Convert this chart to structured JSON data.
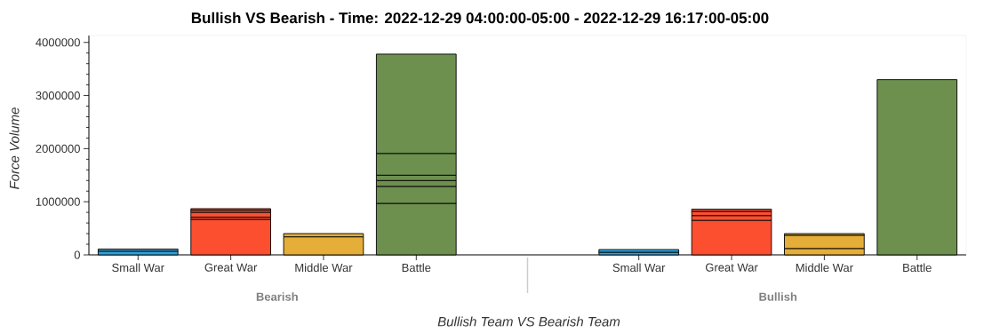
{
  "chart_data": {
    "type": "bar",
    "stacked": true,
    "title": "Bullish VS Bearish - Time: 2022-12-29 04:00:00-05:00 - 2022-12-29 16:17:00-05:00",
    "xlabel": "Bullish Team VS Bearish Team",
    "ylabel": "Force Volume",
    "categories": [
      "Small War",
      "Great War",
      "Middle War",
      "Battle",
      "Small War",
      "Great War",
      "Middle War",
      "Battle"
    ],
    "annotations": [
      "Bearish",
      "Bullish"
    ],
    "ylim": [
      0,
      4130000
    ],
    "yticks": [
      0,
      1000000,
      2000000,
      3000000,
      4000000
    ],
    "series": [
      {
        "values": [
          70000,
          670000,
          340000,
          970000,
          50000,
          650000,
          120000,
          3300000
        ],
        "colors": [
          "#30a2da",
          "#fc4f30",
          "#e5ae38",
          "#6d904f",
          "#30a2da",
          "#fc4f30",
          "#e5ae38",
          "#6d904f"
        ]
      },
      {
        "values": [
          40000,
          40000,
          60000,
          320000,
          50000,
          90000,
          250000,
          null
        ],
        "colors": [
          "#30a2da",
          "#fc4f30",
          "#e5ae38",
          "#6d904f",
          "#30a2da",
          "#fc4f30",
          "#e5ae38",
          null
        ]
      },
      {
        "values": [
          null,
          90000,
          null,
          110000,
          null,
          80000,
          30000,
          null
        ],
        "colors": [
          null,
          "#fc4f30",
          null,
          "#6d904f",
          null,
          "#fc4f30",
          "#e5ae38",
          null
        ]
      },
      {
        "values": [
          null,
          40000,
          null,
          100000,
          null,
          40000,
          null,
          null
        ],
        "colors": [
          null,
          "#fc4f30",
          null,
          "#6d904f",
          null,
          "#fc4f30",
          null,
          null
        ]
      },
      {
        "values": [
          null,
          30000,
          null,
          410000,
          null,
          null,
          null,
          null
        ],
        "colors": [
          null,
          "#fc4f30",
          null,
          "#6d904f",
          null,
          null,
          null,
          null
        ]
      },
      {
        "values": [
          null,
          null,
          null,
          1870000,
          null,
          null,
          null,
          null
        ],
        "colors": [
          null,
          null,
          null,
          "#6d904f",
          null,
          null,
          null,
          null
        ]
      }
    ]
  }
}
